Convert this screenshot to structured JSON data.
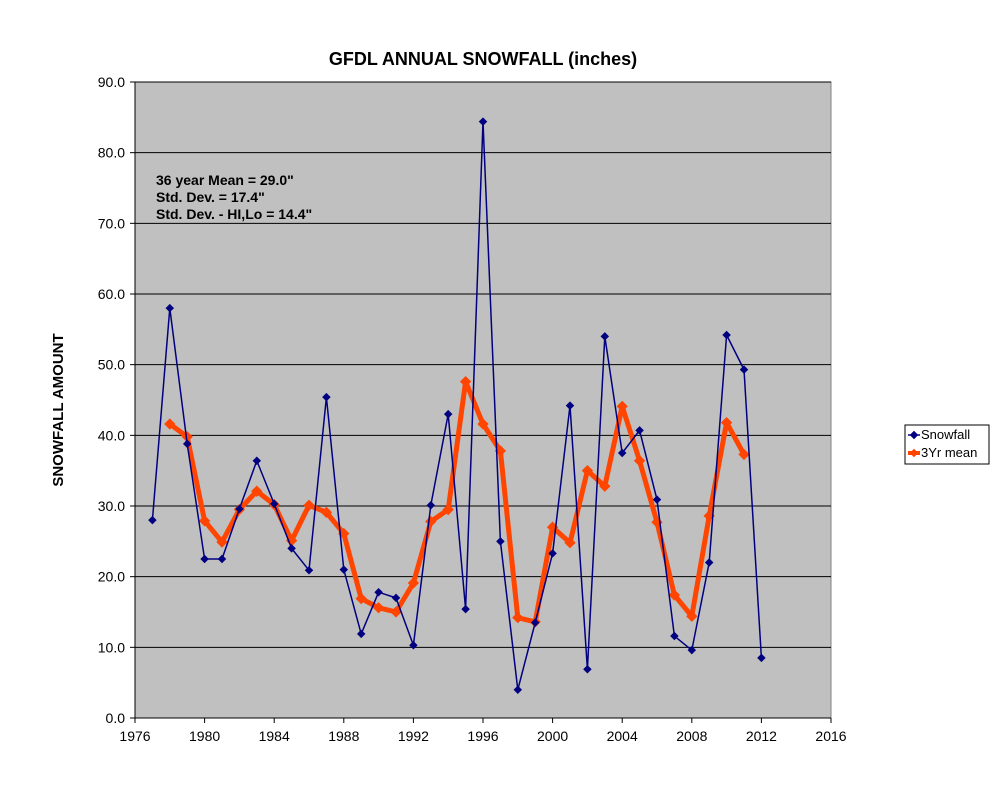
{
  "chart_data": {
    "type": "line",
    "title": "GFDL ANNUAL SNOWFALL (inches)",
    "ylabel": "SNOWFALL AMOUNT",
    "xlabel": "",
    "xlim": [
      1976,
      2016
    ],
    "ylim": [
      0,
      90
    ],
    "x_ticks": [
      "1976",
      "1980",
      "1984",
      "1988",
      "1992",
      "1996",
      "2000",
      "2004",
      "2008",
      "2012",
      "2016"
    ],
    "y_ticks": [
      "0.0",
      "10.0",
      "20.0",
      "30.0",
      "40.0",
      "50.0",
      "60.0",
      "70.0",
      "80.0",
      "90.0"
    ],
    "grid": "horizontal",
    "plot_background": "#c0c0c0",
    "legend_position": "right",
    "annotations": [
      "36 year Mean = 29.0\"",
      "Std. Dev. = 17.4\"",
      "Std. Dev. - HI,Lo = 14.4\""
    ],
    "series": [
      {
        "name": "Snowfall",
        "color": "#000080",
        "x": [
          1977,
          1978,
          1979,
          1980,
          1981,
          1982,
          1983,
          1984,
          1985,
          1986,
          1987,
          1988,
          1989,
          1990,
          1991,
          1992,
          1993,
          1994,
          1995,
          1996,
          1997,
          1998,
          1999,
          2000,
          2001,
          2002,
          2003,
          2004,
          2005,
          2006,
          2007,
          2008,
          2009,
          2010,
          2011,
          2012
        ],
        "values": [
          28.0,
          58.0,
          38.8,
          22.5,
          22.5,
          29.6,
          36.4,
          30.3,
          24.0,
          20.9,
          45.4,
          21.0,
          11.9,
          17.8,
          17.0,
          10.3,
          30.1,
          43.0,
          15.4,
          84.4,
          25.0,
          4.0,
          13.5,
          23.3,
          44.2,
          6.9,
          54.0,
          37.5,
          40.7,
          30.9,
          11.6,
          9.6,
          22.0,
          54.2,
          49.3,
          8.5
        ]
      },
      {
        "name": "3Yr mean",
        "color": "#ff4500",
        "x": [
          1978,
          1979,
          1980,
          1981,
          1982,
          1983,
          1984,
          1985,
          1986,
          1987,
          1988,
          1989,
          1990,
          1991,
          1992,
          1993,
          1994,
          1995,
          1996,
          1997,
          1998,
          1999,
          2000,
          2001,
          2002,
          2003,
          2004,
          2005,
          2006,
          2007,
          2008,
          2009,
          2010,
          2011
        ],
        "values": [
          41.6,
          39.8,
          27.9,
          24.9,
          29.5,
          32.1,
          30.2,
          25.1,
          30.1,
          29.1,
          26.1,
          16.9,
          15.6,
          15.0,
          19.1,
          27.8,
          29.5,
          47.6,
          41.6,
          37.8,
          14.2,
          13.6,
          27.0,
          24.8,
          35.0,
          32.8,
          44.1,
          36.4,
          27.7,
          17.4,
          14.4,
          28.6,
          41.8,
          37.3
        ]
      }
    ]
  }
}
